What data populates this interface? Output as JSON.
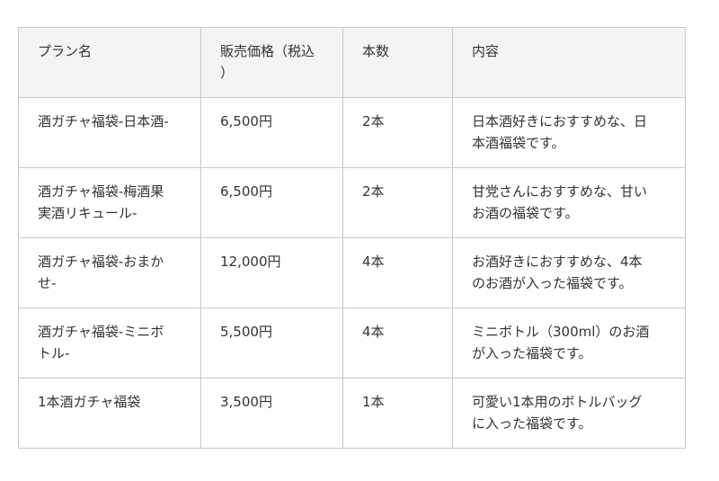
{
  "table": {
    "headers": [
      [
        "プラン名"
      ],
      [
        "販売価格（税込",
        "）"
      ],
      [
        "本数"
      ],
      [
        "内容"
      ]
    ],
    "rows": [
      [
        [
          "酒ガチャ福袋-日本酒-"
        ],
        [
          "6,500円"
        ],
        [
          "2本"
        ],
        [
          "日本酒好きにおすすめな、日",
          "本酒福袋です。"
        ]
      ],
      [
        [
          "酒ガチャ福袋-梅酒果",
          "実酒リキュール-"
        ],
        [
          "6,500円"
        ],
        [
          "2本"
        ],
        [
          "甘党さんにおすすめな、甘い",
          "お酒の福袋です。"
        ]
      ],
      [
        [
          "酒ガチャ福袋-おまか",
          "せ-"
        ],
        [
          "12,000円"
        ],
        [
          "4本"
        ],
        [
          "お酒好きにおすすめな、4本",
          "のお酒が入った福袋です。"
        ]
      ],
      [
        [
          "酒ガチャ福袋-ミニボ",
          "トル-"
        ],
        [
          "5,500円"
        ],
        [
          "4本"
        ],
        [
          "ミニボトル（300ml）のお酒",
          "が入った福袋です。"
        ]
      ],
      [
        [
          "1本酒ガチャ福袋"
        ],
        [
          "3,500円"
        ],
        [
          "1本"
        ],
        [
          "可愛い1本用のボトルバッグ",
          "に入った福袋です。"
        ]
      ]
    ]
  }
}
